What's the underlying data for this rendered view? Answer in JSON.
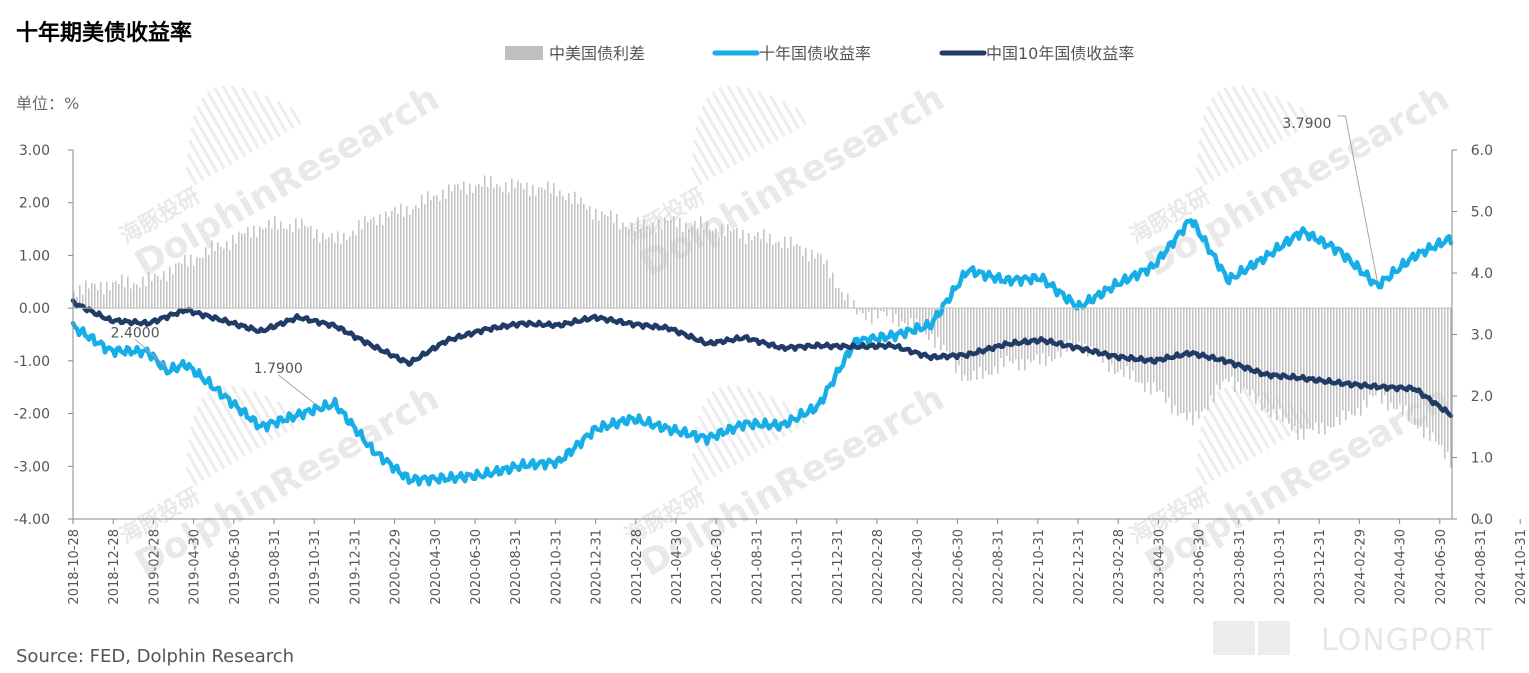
{
  "page": {
    "title": "十年期美债收益率",
    "unit": "单位：%",
    "source": "Source: FED, Dolphin Research",
    "brand": "LONGPORT"
  },
  "chart_data": {
    "type": "line",
    "title": "十年期美债收益率",
    "legend": [
      {
        "name": "中美国债利差",
        "color": "#bfbfbf"
      },
      {
        "name": "十年国债收益率",
        "color": "#17aee8"
      },
      {
        "name": "中国10年国债收益率",
        "color": "#1f3b66"
      }
    ],
    "left_axis": {
      "ticks": [
        "3.00",
        "2.00",
        "1.00",
        "0.00",
        "-1.00",
        "-2.00",
        "-3.00",
        "-4.00"
      ],
      "ylim": [
        -4,
        3
      ]
    },
    "right_axis": {
      "ticks": [
        "6.0",
        "5.0",
        "4.0",
        "3.0",
        "2.0",
        "1.0",
        "0.0"
      ],
      "ylim": [
        0,
        6
      ]
    },
    "x_ticks": [
      "2018-10-28",
      "2018-12-28",
      "2019-02-28",
      "2019-04-30",
      "2019-06-30",
      "2019-08-31",
      "2019-10-31",
      "2019-12-31",
      "2020-02-29",
      "2020-04-30",
      "2020-06-30",
      "2020-08-31",
      "2020-10-31",
      "2020-12-31",
      "2021-02-28",
      "2021-04-30",
      "2021-06-30",
      "2021-08-31",
      "2021-10-31",
      "2021-12-31",
      "2022-02-28",
      "2022-04-30",
      "2022-06-30",
      "2022-08-31",
      "2022-10-31",
      "2022-12-31",
      "2023-02-28",
      "2023-04-30",
      "2023-06-30",
      "2023-08-31",
      "2023-10-31",
      "2023-12-31",
      "2024-02-29",
      "2024-04-30",
      "2024-06-30",
      "2024-08-31",
      "2024-10-31"
    ],
    "annotations": [
      {
        "label": "2.4000",
        "x": "2019-03-31",
        "value": 2.4
      },
      {
        "label": "1.7900",
        "x": "2019-11-30",
        "value": 1.79
      },
      {
        "label": "3.7900",
        "x": "2024-08-31",
        "value": 3.79
      }
    ],
    "series": [
      {
        "name": "十年国债收益率",
        "axis": "right",
        "points": [
          [
            "2018-10-28",
            3.13
          ],
          [
            "2018-12-28",
            2.74
          ],
          [
            "2019-02-28",
            2.72
          ],
          [
            "2019-03-31",
            2.4
          ],
          [
            "2019-04-30",
            2.52
          ],
          [
            "2019-06-30",
            2.02
          ],
          [
            "2019-08-31",
            1.5
          ],
          [
            "2019-10-31",
            1.69
          ],
          [
            "2019-11-30",
            1.79
          ],
          [
            "2019-12-31",
            1.87
          ],
          [
            "2020-02-29",
            1.13
          ],
          [
            "2020-04-30",
            0.64
          ],
          [
            "2020-06-30",
            0.66
          ],
          [
            "2020-08-31",
            0.72
          ],
          [
            "2020-10-31",
            0.87
          ],
          [
            "2020-12-31",
            0.93
          ],
          [
            "2021-02-28",
            1.46
          ],
          [
            "2021-04-30",
            1.63
          ],
          [
            "2021-06-30",
            1.46
          ],
          [
            "2021-08-31",
            1.31
          ],
          [
            "2021-10-31",
            1.55
          ],
          [
            "2021-12-31",
            1.52
          ],
          [
            "2022-02-28",
            1.83
          ],
          [
            "2022-04-30",
            2.89
          ],
          [
            "2022-06-30",
            2.98
          ],
          [
            "2022-08-31",
            3.15
          ],
          [
            "2022-10-31",
            4.05
          ],
          [
            "2022-12-31",
            3.88
          ],
          [
            "2023-02-28",
            3.92
          ],
          [
            "2023-04-30",
            3.44
          ],
          [
            "2023-06-30",
            3.81
          ],
          [
            "2023-08-31",
            4.11
          ],
          [
            "2023-10-31",
            4.88
          ],
          [
            "2023-12-31",
            3.88
          ],
          [
            "2024-02-29",
            4.25
          ],
          [
            "2024-04-30",
            4.68
          ],
          [
            "2024-06-30",
            4.36
          ],
          [
            "2024-08-31",
            3.79
          ],
          [
            "2024-10-31",
            4.28
          ],
          [
            "2024-12-31",
            4.57
          ]
        ]
      },
      {
        "name": "中国10年国债收益率",
        "axis": "right",
        "points": [
          [
            "2018-10-28",
            3.52
          ],
          [
            "2018-12-28",
            3.23
          ],
          [
            "2019-02-28",
            3.18
          ],
          [
            "2019-04-30",
            3.4
          ],
          [
            "2019-06-30",
            3.23
          ],
          [
            "2019-08-31",
            3.05
          ],
          [
            "2019-10-31",
            3.28
          ],
          [
            "2019-12-31",
            3.14
          ],
          [
            "2020-02-29",
            2.82
          ],
          [
            "2020-04-30",
            2.53
          ],
          [
            "2020-06-30",
            2.9
          ],
          [
            "2020-08-31",
            3.08
          ],
          [
            "2020-10-31",
            3.18
          ],
          [
            "2020-12-31",
            3.15
          ],
          [
            "2021-02-28",
            3.28
          ],
          [
            "2021-04-30",
            3.17
          ],
          [
            "2021-06-30",
            3.1
          ],
          [
            "2021-08-31",
            2.85
          ],
          [
            "2021-10-31",
            2.95
          ],
          [
            "2021-12-31",
            2.78
          ],
          [
            "2022-02-28",
            2.82
          ],
          [
            "2022-04-30",
            2.8
          ],
          [
            "2022-06-30",
            2.82
          ],
          [
            "2022-08-31",
            2.63
          ],
          [
            "2022-10-31",
            2.67
          ],
          [
            "2022-12-31",
            2.84
          ],
          [
            "2023-02-28",
            2.91
          ],
          [
            "2023-04-30",
            2.78
          ],
          [
            "2023-06-30",
            2.64
          ],
          [
            "2023-08-31",
            2.57
          ],
          [
            "2023-10-31",
            2.7
          ],
          [
            "2023-12-31",
            2.56
          ],
          [
            "2024-02-29",
            2.35
          ],
          [
            "2024-04-30",
            2.29
          ],
          [
            "2024-06-30",
            2.21
          ],
          [
            "2024-08-31",
            2.15
          ],
          [
            "2024-10-31",
            2.12
          ],
          [
            "2024-12-31",
            1.68
          ]
        ]
      },
      {
        "name": "中美国债利差",
        "axis": "left",
        "style": "bars",
        "points": [
          [
            "2018-10-28",
            0.34
          ],
          [
            "2018-12-28",
            0.46
          ],
          [
            "2019-02-28",
            0.51
          ],
          [
            "2019-04-30",
            0.88
          ],
          [
            "2019-06-30",
            1.21
          ],
          [
            "2019-08-31",
            1.55
          ],
          [
            "2019-10-31",
            1.59
          ],
          [
            "2019-12-31",
            1.27
          ],
          [
            "2020-02-29",
            1.69
          ],
          [
            "2020-04-30",
            1.89
          ],
          [
            "2020-06-30",
            2.24
          ],
          [
            "2020-08-31",
            2.36
          ],
          [
            "2020-10-31",
            2.31
          ],
          [
            "2020-12-31",
            2.22
          ],
          [
            "2021-02-28",
            1.82
          ],
          [
            "2021-04-30",
            1.54
          ],
          [
            "2021-06-30",
            1.64
          ],
          [
            "2021-08-31",
            1.54
          ],
          [
            "2021-10-31",
            1.4
          ],
          [
            "2021-12-31",
            1.26
          ],
          [
            "2022-02-28",
            0.99
          ],
          [
            "2022-04-30",
            -0.09
          ],
          [
            "2022-06-30",
            -0.16
          ],
          [
            "2022-08-31",
            -0.52
          ],
          [
            "2022-10-31",
            -1.38
          ],
          [
            "2022-12-31",
            -1.04
          ],
          [
            "2023-02-28",
            -1.01
          ],
          [
            "2023-04-30",
            -0.66
          ],
          [
            "2023-06-30",
            -1.17
          ],
          [
            "2023-08-31",
            -1.54
          ],
          [
            "2023-10-31",
            -2.18
          ],
          [
            "2023-12-31",
            -1.32
          ],
          [
            "2024-02-29",
            -1.9
          ],
          [
            "2024-04-30",
            -2.39
          ],
          [
            "2024-06-30",
            -2.15
          ],
          [
            "2024-08-31",
            -1.64
          ],
          [
            "2024-10-31",
            -2.16
          ],
          [
            "2024-12-31",
            -2.89
          ]
        ]
      }
    ]
  }
}
